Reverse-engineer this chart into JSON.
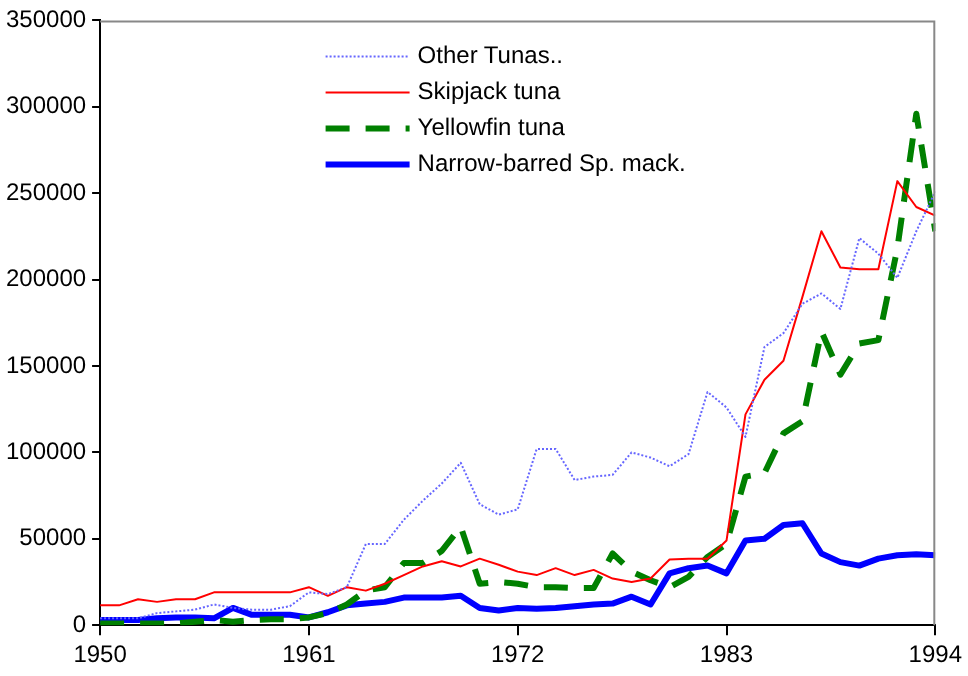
{
  "chart_data": {
    "type": "line",
    "x": [
      1950,
      1951,
      1952,
      1953,
      1954,
      1955,
      1956,
      1957,
      1958,
      1959,
      1960,
      1961,
      1962,
      1963,
      1964,
      1965,
      1966,
      1967,
      1968,
      1969,
      1970,
      1971,
      1972,
      1973,
      1974,
      1975,
      1976,
      1977,
      1978,
      1979,
      1980,
      1981,
      1982,
      1983,
      1984,
      1985,
      1986,
      1987,
      1988,
      1989,
      1990,
      1991,
      1992,
      1993,
      1994
    ],
    "series": [
      {
        "name": "Other Tunas..",
        "color": "#6666ff",
        "line_style": "dotted",
        "values": [
          4000,
          4000,
          4000,
          7000,
          8000,
          9000,
          12000,
          10000,
          9000,
          9000,
          11000,
          19000,
          18000,
          22000,
          47000,
          47000,
          61000,
          72000,
          82000,
          94000,
          70000,
          64000,
          67000,
          102000,
          102000,
          84000,
          86000,
          87000,
          100000,
          97000,
          92000,
          99000,
          135000,
          126000,
          109000,
          161000,
          169000,
          186000,
          192000,
          183000,
          224000,
          215000,
          201000,
          228000,
          251000
        ]
      },
      {
        "name": "Skipjack tuna",
        "color": "#ff0000",
        "line_style": "solid",
        "values": [
          11500,
          11500,
          15000,
          13500,
          15000,
          15000,
          19000,
          19000,
          19000,
          19000,
          19000,
          22000,
          17000,
          22000,
          20000,
          24000,
          29000,
          34000,
          37000,
          34000,
          38500,
          35000,
          31000,
          29000,
          33000,
          29000,
          32000,
          27000,
          25000,
          27000,
          38000,
          38500,
          38500,
          49000,
          122000,
          142000,
          153000,
          190000,
          228000,
          207000,
          206000,
          206000,
          257000,
          242000,
          237000
        ]
      },
      {
        "name": "Yellowfin tuna",
        "color": "#008000",
        "line_style": "dashed",
        "values": [
          1000,
          1000,
          1000,
          1000,
          1000,
          2000,
          3000,
          2000,
          3000,
          3500,
          3500,
          4500,
          7000,
          12000,
          20000,
          22000,
          36000,
          36000,
          43000,
          57000,
          24000,
          25000,
          24000,
          22000,
          22000,
          21500,
          21500,
          41500,
          31000,
          26000,
          22000,
          28000,
          39500,
          47000,
          86000,
          88000,
          111000,
          118000,
          170000,
          145000,
          163000,
          165000,
          218000,
          296000,
          228000
        ]
      },
      {
        "name": "Narrow-barred Sp. mack.",
        "color": "#0000ff",
        "line_style": "solid",
        "values": [
          3000,
          3000,
          3000,
          4000,
          4500,
          4500,
          4000,
          10000,
          6000,
          6000,
          6000,
          4500,
          7500,
          11500,
          12500,
          13500,
          16000,
          16000,
          16000,
          17000,
          10000,
          8500,
          10000,
          9500,
          10000,
          11000,
          12000,
          12500,
          16500,
          12000,
          30000,
          33000,
          34500,
          30000,
          49000,
          50000,
          58000,
          59000,
          41500,
          36500,
          34500,
          38500,
          40500,
          41000,
          40500
        ]
      }
    ],
    "xlim": [
      1950,
      1994
    ],
    "xticks": [
      1950,
      1961,
      1972,
      1983,
      1994
    ],
    "ylim": [
      0,
      350000
    ],
    "yticks": [
      0,
      50000,
      100000,
      150000,
      200000,
      250000,
      300000,
      350000
    ],
    "grid": false,
    "legend": "top",
    "marker": "none"
  }
}
